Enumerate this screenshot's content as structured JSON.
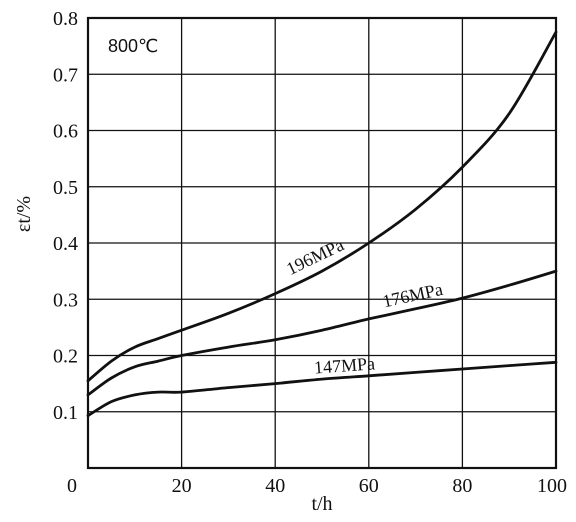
{
  "chart_data": {
    "type": "line",
    "annotation": "800℃",
    "xlabel": "t/h",
    "ylabel": "εt/%",
    "xlim": [
      0,
      100
    ],
    "ylim": [
      0,
      0.8
    ],
    "x_ticks": [
      0,
      20,
      40,
      60,
      80,
      100
    ],
    "y_ticks": [
      0.1,
      0.2,
      0.3,
      0.4,
      0.5,
      0.6,
      0.7,
      0.8
    ],
    "x_tick_labels": [
      "0",
      "20",
      "40",
      "60",
      "80",
      "100"
    ],
    "y_tick_labels": [
      "0.1",
      "0.2",
      "0.3",
      "0.4",
      "0.5",
      "0.6",
      "0.7",
      "0.8"
    ],
    "grid": true,
    "series": [
      {
        "name": "196MPa",
        "x": [
          0,
          5,
          10,
          15,
          20,
          30,
          40,
          50,
          60,
          70,
          80,
          90,
          100
        ],
        "y": [
          0.155,
          0.19,
          0.215,
          0.23,
          0.245,
          0.275,
          0.31,
          0.35,
          0.4,
          0.46,
          0.535,
          0.63,
          0.775
        ]
      },
      {
        "name": "176MPa",
        "x": [
          0,
          5,
          10,
          15,
          20,
          30,
          40,
          50,
          60,
          70,
          80,
          90,
          100
        ],
        "y": [
          0.13,
          0.16,
          0.18,
          0.19,
          0.2,
          0.215,
          0.228,
          0.245,
          0.265,
          0.283,
          0.302,
          0.325,
          0.35
        ]
      },
      {
        "name": "147MPa",
        "x": [
          0,
          5,
          10,
          15,
          20,
          30,
          40,
          50,
          60,
          70,
          80,
          90,
          100
        ],
        "y": [
          0.093,
          0.118,
          0.13,
          0.135,
          0.135,
          0.143,
          0.15,
          0.158,
          0.164,
          0.17,
          0.176,
          0.182,
          0.188
        ]
      }
    ]
  }
}
